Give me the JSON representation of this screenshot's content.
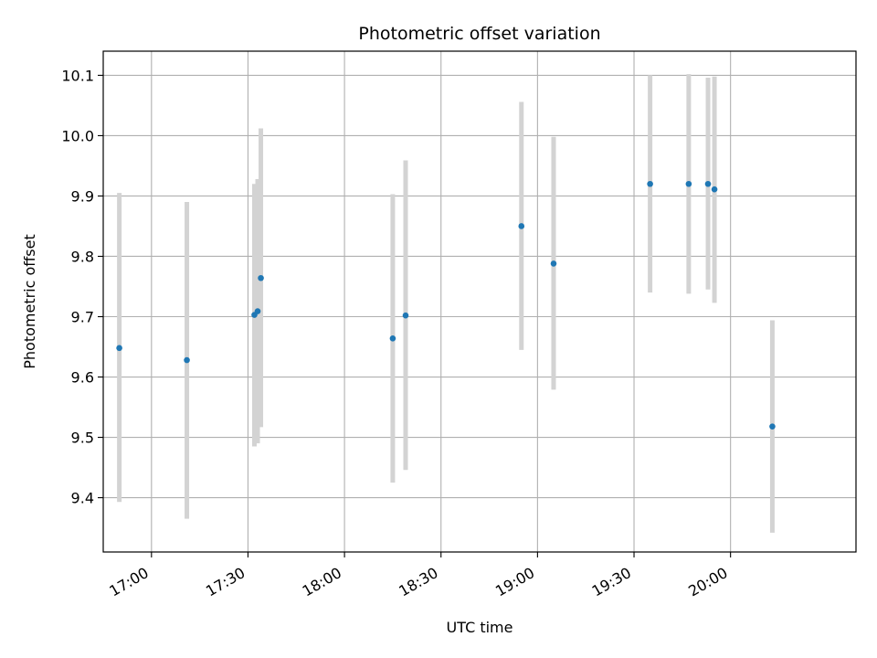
{
  "chart_data": {
    "type": "scatter",
    "title": "Photometric offset variation",
    "xlabel": "UTC time",
    "ylabel": "Photometric offset",
    "x_ticks": [
      "17:00",
      "17:30",
      "18:00",
      "18:30",
      "19:00",
      "19:30",
      "20:00"
    ],
    "y_ticks": [
      9.4,
      9.5,
      9.6,
      9.7,
      9.8,
      9.9,
      10.0,
      10.1
    ],
    "y_tick_labels": [
      "9.4",
      "9.5",
      "9.6",
      "9.7",
      "9.8",
      "9.9",
      "10.0",
      "10.1"
    ],
    "xlim": [
      "16:45",
      "20:39"
    ],
    "ylim": [
      9.31,
      10.14
    ],
    "grid": true,
    "colors": {
      "point": "#1f77b4",
      "errorbar": "#d3d3d3",
      "grid": "#b0b0b0"
    },
    "points": [
      {
        "x": "16:50",
        "y": 9.648,
        "low": 9.393,
        "high": 9.905
      },
      {
        "x": "17:11",
        "y": 9.628,
        "low": 9.365,
        "high": 9.89
      },
      {
        "x": "17:32",
        "y": 9.703,
        "low": 9.485,
        "high": 9.92
      },
      {
        "x": "17:33",
        "y": 9.709,
        "low": 9.49,
        "high": 9.928
      },
      {
        "x": "17:34",
        "y": 9.764,
        "low": 9.517,
        "high": 10.012
      },
      {
        "x": "18:15",
        "y": 9.664,
        "low": 9.425,
        "high": 9.903
      },
      {
        "x": "18:19",
        "y": 9.702,
        "low": 9.446,
        "high": 9.959
      },
      {
        "x": "18:55",
        "y": 9.85,
        "low": 9.645,
        "high": 10.056
      },
      {
        "x": "19:05",
        "y": 9.788,
        "low": 9.579,
        "high": 9.998
      },
      {
        "x": "19:35",
        "y": 9.92,
        "low": 9.74,
        "high": 10.1
      },
      {
        "x": "19:47",
        "y": 9.92,
        "low": 9.738,
        "high": 10.102
      },
      {
        "x": "19:53",
        "y": 9.92,
        "low": 9.745,
        "high": 10.096
      },
      {
        "x": "19:55",
        "y": 9.911,
        "low": 9.723,
        "high": 10.098
      },
      {
        "x": "20:13",
        "y": 9.518,
        "low": 9.342,
        "high": 9.694
      }
    ]
  }
}
